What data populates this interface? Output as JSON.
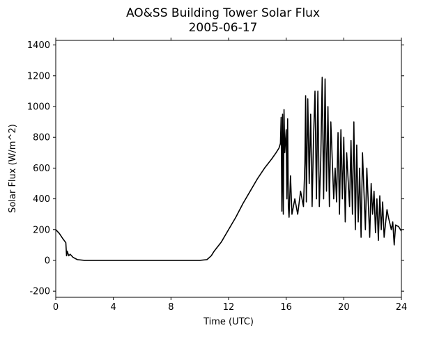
{
  "chart_data": {
    "type": "line",
    "title": "AO&SS Building Tower Solar Flux",
    "subtitle": "2005-06-17",
    "x_label": "Time (UTC)",
    "y_label": "Solar Flux (W/m^2)",
    "color": "#000000",
    "xlim": [
      0,
      24
    ],
    "xticks": [
      0,
      4,
      8,
      12,
      16,
      20,
      24
    ],
    "ylim": [
      -240,
      1430
    ],
    "yticks": [
      -200,
      0,
      200,
      400,
      600,
      800,
      1000,
      1200,
      1400
    ],
    "x": [
      0,
      0.25,
      0.5,
      0.7,
      0.75,
      0.8,
      0.9,
      1.0,
      1.2,
      1.5,
      2,
      3,
      4,
      5,
      6,
      7,
      8,
      9,
      10,
      10.5,
      10.8,
      11,
      11.5,
      12,
      12.5,
      13,
      13.5,
      14,
      14.5,
      15,
      15.3,
      15.5,
      15.6,
      15.65,
      15.7,
      15.75,
      15.8,
      15.85,
      15.9,
      16.0,
      16.05,
      16.1,
      16.15,
      16.2,
      16.3,
      16.4,
      16.6,
      16.8,
      17.0,
      17.2,
      17.3,
      17.35,
      17.4,
      17.5,
      17.6,
      17.7,
      17.8,
      17.9,
      18.0,
      18.1,
      18.2,
      18.3,
      18.4,
      18.5,
      18.6,
      18.7,
      18.8,
      18.9,
      19.0,
      19.1,
      19.3,
      19.4,
      19.5,
      19.6,
      19.7,
      19.8,
      19.9,
      20.0,
      20.1,
      20.2,
      20.4,
      20.5,
      20.6,
      20.7,
      20.8,
      20.9,
      21.0,
      21.1,
      21.2,
      21.3,
      21.5,
      21.6,
      21.8,
      21.9,
      22.0,
      22.1,
      22.2,
      22.3,
      22.4,
      22.5,
      22.6,
      22.7,
      22.8,
      23.0,
      23.1,
      23.3,
      23.4,
      23.5,
      23.6,
      23.8,
      24
    ],
    "values": [
      200,
      175,
      140,
      115,
      30,
      60,
      30,
      40,
      20,
      5,
      0,
      0,
      0,
      0,
      0,
      0,
      0,
      0,
      0,
      5,
      30,
      60,
      120,
      200,
      280,
      370,
      450,
      530,
      600,
      660,
      700,
      730,
      760,
      930,
      320,
      950,
      300,
      980,
      700,
      850,
      400,
      920,
      350,
      280,
      550,
      300,
      400,
      300,
      450,
      350,
      630,
      1070,
      380,
      1050,
      500,
      950,
      350,
      800,
      1100,
      400,
      1100,
      350,
      650,
      1190,
      400,
      1180,
      450,
      1000,
      350,
      900,
      400,
      600,
      380,
      830,
      300,
      850,
      400,
      800,
      250,
      700,
      350,
      780,
      300,
      900,
      200,
      750,
      250,
      600,
      150,
      700,
      200,
      600,
      150,
      500,
      300,
      450,
      180,
      400,
      130,
      420,
      200,
      380,
      150,
      330,
      280,
      200,
      250,
      100,
      230,
      220,
      190
    ]
  }
}
